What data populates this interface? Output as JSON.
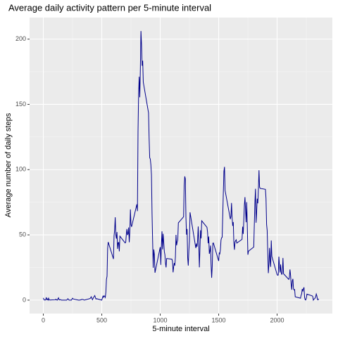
{
  "chart_data": {
    "type": "line",
    "title": "Average daily activity pattern per 5-minute interval",
    "x_label": "5-minute interval",
    "y_label": "Average number of daily steps",
    "x": [
      0,
      5,
      10,
      15,
      20,
      25,
      30,
      35,
      40,
      45,
      50,
      55,
      100,
      105,
      110,
      115,
      120,
      125,
      130,
      135,
      140,
      145,
      150,
      155,
      200,
      210,
      220,
      230,
      240,
      250,
      255,
      300,
      310,
      320,
      330,
      340,
      350,
      400,
      410,
      420,
      430,
      440,
      450,
      455,
      500,
      505,
      510,
      515,
      520,
      525,
      530,
      535,
      540,
      545,
      550,
      555,
      600,
      605,
      610,
      615,
      620,
      625,
      630,
      635,
      640,
      645,
      650,
      655,
      700,
      705,
      710,
      715,
      720,
      725,
      730,
      735,
      740,
      745,
      750,
      755,
      800,
      805,
      810,
      815,
      820,
      825,
      830,
      835,
      840,
      845,
      850,
      855,
      900,
      905,
      910,
      915,
      920,
      925,
      930,
      935,
      940,
      945,
      950,
      955,
      1000,
      1005,
      1010,
      1015,
      1020,
      1025,
      1030,
      1035,
      1040,
      1045,
      1050,
      1055,
      1100,
      1105,
      1110,
      1115,
      1120,
      1125,
      1130,
      1135,
      1140,
      1145,
      1150,
      1155,
      1200,
      1205,
      1210,
      1215,
      1220,
      1225,
      1230,
      1235,
      1240,
      1245,
      1250,
      1255,
      1300,
      1305,
      1310,
      1315,
      1320,
      1325,
      1330,
      1335,
      1340,
      1345,
      1350,
      1355,
      1400,
      1405,
      1410,
      1415,
      1420,
      1425,
      1430,
      1435,
      1440,
      1445,
      1450,
      1455,
      1500,
      1505,
      1510,
      1515,
      1520,
      1525,
      1530,
      1535,
      1540,
      1545,
      1550,
      1555,
      1600,
      1605,
      1610,
      1615,
      1620,
      1625,
      1630,
      1635,
      1640,
      1645,
      1650,
      1655,
      1700,
      1705,
      1710,
      1715,
      1720,
      1725,
      1730,
      1735,
      1740,
      1745,
      1750,
      1755,
      1800,
      1805,
      1810,
      1815,
      1820,
      1825,
      1830,
      1835,
      1840,
      1845,
      1850,
      1855,
      1900,
      1905,
      1910,
      1915,
      1920,
      1925,
      1930,
      1935,
      1940,
      1945,
      1950,
      1955,
      2000,
      2005,
      2010,
      2015,
      2020,
      2025,
      2030,
      2035,
      2040,
      2045,
      2050,
      2055,
      2100,
      2105,
      2110,
      2115,
      2120,
      2125,
      2130,
      2135,
      2140,
      2145,
      2150,
      2155,
      2200,
      2205,
      2210,
      2215,
      2220,
      2225,
      2230,
      2235,
      2240,
      2245,
      2250,
      2255,
      2300,
      2305,
      2310,
      2315,
      2320,
      2325,
      2330,
      2335,
      2340,
      2345,
      2350,
      2355
    ],
    "series": [
      {
        "name": "steps",
        "color": "#00008B",
        "values": [
          1.7,
          0.3,
          0.1,
          0.2,
          0.1,
          2.1,
          0.5,
          0.9,
          0,
          1.5,
          0.3,
          0.1,
          0.3,
          0.7,
          0.2,
          0.3,
          0,
          1.1,
          1.8,
          0.2,
          0.2,
          0.4,
          0.3,
          0,
          0,
          1.1,
          0,
          0,
          0,
          1.5,
          0.9,
          0,
          0,
          0.2,
          0.6,
          0.5,
          0,
          1.2,
          2.6,
          0.3,
          2.1,
          3.5,
          0.8,
          1.1,
          0,
          1.6,
          3,
          2.2,
          3.3,
          3,
          2.1,
          6.1,
          16,
          18.3,
          39.5,
          44.5,
          31.5,
          49.3,
          53.8,
          63.5,
          50,
          47.1,
          52.2,
          39.3,
          44,
          44.2,
          37.4,
          49,
          43.8,
          44.4,
          50.5,
          54.5,
          49.9,
          51,
          55.7,
          44.3,
          52.3,
          69.5,
          57.8,
          56.2,
          73.4,
          68.2,
          129.4,
          157.5,
          171.2,
          155.4,
          177.3,
          206.2,
          195.9,
          179.6,
          183.4,
          167,
          143.5,
          124,
          109.1,
          108.1,
          103.7,
          95.9,
          66.2,
          45.2,
          24.8,
          38.8,
          35,
          21,
          40.6,
          27,
          42.4,
          52.7,
          38.9,
          50.8,
          44.3,
          37.4,
          34.7,
          28.3,
          25.1,
          31.9,
          31.4,
          29.7,
          21.3,
          25.5,
          28.4,
          26.5,
          33.4,
          50,
          42,
          44.6,
          46,
          59.2,
          63.9,
          87.7,
          94.8,
          92.8,
          63.4,
          50.2,
          54.5,
          32.4,
          26.5,
          37.7,
          45.1,
          67.3,
          42.3,
          39.9,
          43.3,
          41,
          46.2,
          56.4,
          42.8,
          25.1,
          40,
          53.5,
          47.3,
          60.8,
          55.8,
          52,
          43.6,
          48.7,
          35.5,
          37.5,
          41.8,
          27.5,
          17.1,
          26.1,
          43.6,
          43.8,
          30,
          36.1,
          35.5,
          38.8,
          46,
          47.8,
          48.1,
          65.3,
          82.9,
          98.7,
          102.1,
          84,
          62.1,
          64.1,
          74.5,
          63.2,
          56.9,
          59.8,
          43.9,
          38.6,
          44.7,
          45.5,
          46.2,
          43.7,
          46.6,
          56.3,
          50.7,
          61.2,
          72.7,
          78.9,
          68.9,
          59.7,
          75.1,
          56.5,
          34.8,
          37.5,
          40.7,
          58,
          74.7,
          85.3,
          59.3,
          67.8,
          77.7,
          74.2,
          85.3,
          99.5,
          86.6,
          85.6,
          84.9,
          77.8,
          58,
          53.4,
          36.3,
          20.7,
          27.4,
          40,
          30.2,
          25.5,
          45.7,
          33.5,
          19.6,
          19,
          19.3,
          33.3,
          26.8,
          21.2,
          27.3,
          21.3,
          19.5,
          21.3,
          32.3,
          20.2,
          15.9,
          17.2,
          23.5,
          19.2,
          12.5,
          8,
          14.7,
          16.3,
          8.7,
          7.8,
          8.1,
          2.6,
          1.5,
          3.7,
          4.8,
          8.5,
          7.1,
          8.7,
          9.8,
          2.2,
          0.3,
          0.1,
          1.6,
          4.6,
          3.3,
          2.8,
          0,
          0.8,
          1,
          1.6,
          2.6,
          4.7,
          3.3,
          0.6,
          0.2,
          1.1
        ]
      }
    ],
    "xlim": [
      -117.75,
      2472.75
    ],
    "xticks": [
      0,
      500,
      1000,
      1500,
      2000
    ],
    "ylim": [
      -10.3,
      216.5
    ],
    "yticks": [
      0,
      50,
      100,
      150,
      200
    ],
    "grid": true
  }
}
